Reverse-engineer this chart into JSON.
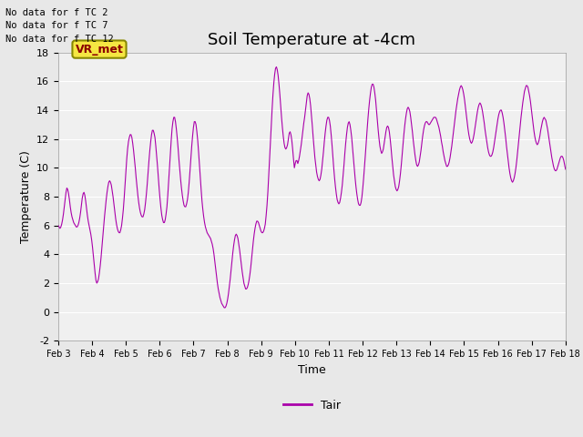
{
  "title": "Soil Temperature at -4cm",
  "xlabel": "Time",
  "ylabel": "Temperature (C)",
  "ylim": [
    -2,
    18
  ],
  "yticks": [
    -2,
    0,
    2,
    4,
    6,
    8,
    10,
    12,
    14,
    16,
    18
  ],
  "xtick_labels": [
    "Feb 3",
    "Feb 4",
    "Feb 5",
    "Feb 6",
    "Feb 7",
    "Feb 8",
    "Feb 9",
    "Feb 10",
    "Feb 11",
    "Feb 12",
    "Feb 13",
    "Feb 14",
    "Feb 15",
    "Feb 16",
    "Feb 17",
    "Feb 18"
  ],
  "line_color": "#aa00aa",
  "line_color_light": "#cc88cc",
  "background_color": "#e8e8e8",
  "plot_bg_color": "#f0f0f0",
  "no_data_texts": [
    "No data for f TC 2",
    "No data for f TC 7",
    "No data for f TC 12"
  ],
  "legend_label": "Tair",
  "vr_met_label": "VR_met",
  "title_fontsize": 13,
  "axis_fontsize": 9,
  "tick_fontsize": 8,
  "y_values": [
    6.0,
    5.9,
    5.8,
    5.9,
    6.1,
    6.4,
    6.8,
    7.3,
    7.8,
    8.3,
    8.6,
    8.5,
    8.2,
    7.8,
    7.3,
    6.9,
    6.6,
    6.4,
    6.2,
    6.1,
    6.0,
    5.9,
    5.9,
    6.0,
    6.2,
    6.5,
    6.9,
    7.4,
    7.9,
    8.2,
    8.3,
    8.1,
    7.7,
    7.2,
    6.7,
    6.3,
    6.0,
    5.7,
    5.4,
    5.0,
    4.5,
    3.9,
    3.3,
    2.7,
    2.2,
    2.0,
    2.1,
    2.3,
    2.7,
    3.2,
    3.8,
    4.5,
    5.2,
    5.9,
    6.6,
    7.2,
    7.8,
    8.3,
    8.7,
    9.0,
    9.1,
    9.0,
    8.8,
    8.4,
    8.0,
    7.5,
    7.0,
    6.5,
    6.1,
    5.8,
    5.6,
    5.5,
    5.5,
    5.7,
    6.0,
    6.5,
    7.1,
    7.9,
    8.8,
    9.7,
    10.6,
    11.3,
    11.8,
    12.1,
    12.3,
    12.3,
    12.1,
    11.7,
    11.2,
    10.6,
    10.0,
    9.3,
    8.7,
    8.1,
    7.6,
    7.2,
    6.9,
    6.7,
    6.6,
    6.6,
    6.8,
    7.1,
    7.6,
    8.2,
    8.9,
    9.7,
    10.5,
    11.2,
    11.8,
    12.3,
    12.6,
    12.6,
    12.4,
    12.1,
    11.5,
    10.8,
    10.1,
    9.3,
    8.5,
    7.8,
    7.2,
    6.7,
    6.4,
    6.2,
    6.2,
    6.4,
    6.8,
    7.3,
    8.1,
    9.0,
    10.0,
    11.0,
    11.9,
    12.7,
    13.2,
    13.5,
    13.5,
    13.2,
    12.7,
    12.1,
    11.4,
    10.6,
    9.9,
    9.2,
    8.6,
    8.1,
    7.7,
    7.4,
    7.3,
    7.3,
    7.5,
    7.8,
    8.3,
    9.0,
    9.8,
    10.7,
    11.5,
    12.2,
    12.8,
    13.2,
    13.2,
    13.0,
    12.5,
    11.9,
    11.1,
    10.2,
    9.3,
    8.5,
    7.7,
    7.1,
    6.6,
    6.2,
    5.9,
    5.7,
    5.5,
    5.4,
    5.3,
    5.2,
    5.1,
    4.9,
    4.7,
    4.4,
    4.0,
    3.5,
    3.0,
    2.5,
    2.0,
    1.6,
    1.3,
    1.0,
    0.8,
    0.6,
    0.5,
    0.4,
    0.3,
    0.3,
    0.4,
    0.6,
    0.9,
    1.3,
    1.8,
    2.3,
    2.9,
    3.5,
    4.1,
    4.6,
    5.0,
    5.3,
    5.4,
    5.3,
    5.1,
    4.7,
    4.3,
    3.8,
    3.3,
    2.8,
    2.4,
    2.0,
    1.8,
    1.6,
    1.6,
    1.7,
    1.9,
    2.2,
    2.6,
    3.1,
    3.7,
    4.3,
    4.9,
    5.4,
    5.8,
    6.1,
    6.3,
    6.3,
    6.2,
    6.0,
    5.8,
    5.6,
    5.5,
    5.5,
    5.6,
    5.8,
    6.1,
    6.7,
    7.4,
    8.3,
    9.4,
    10.6,
    11.8,
    13.0,
    14.1,
    15.1,
    15.9,
    16.5,
    16.9,
    17.0,
    16.8,
    16.4,
    15.8,
    15.1,
    14.3,
    13.5,
    12.8,
    12.2,
    11.7,
    11.4,
    11.3,
    11.4,
    11.6,
    12.0,
    12.4,
    12.5,
    12.3,
    11.9,
    11.3,
    10.6,
    10.0,
    10.3,
    10.5,
    10.5,
    10.3,
    10.5,
    10.8,
    11.2,
    11.6,
    12.1,
    12.6,
    13.1,
    13.5,
    14.0,
    14.5,
    15.0,
    15.2,
    15.1,
    14.8,
    14.3,
    13.6,
    12.9,
    12.1,
    11.4,
    10.7,
    10.2,
    9.7,
    9.4,
    9.2,
    9.1,
    9.2,
    9.5,
    9.9,
    10.5,
    11.1,
    11.8,
    12.4,
    12.9,
    13.3,
    13.5,
    13.5,
    13.3,
    12.9,
    12.3,
    11.6,
    10.8,
    10.0,
    9.3,
    8.7,
    8.2,
    7.8,
    7.6,
    7.5,
    7.6,
    7.9,
    8.3,
    8.8,
    9.5,
    10.2,
    11.0,
    11.7,
    12.3,
    12.8,
    13.1,
    13.2,
    13.0,
    12.6,
    12.1,
    11.4,
    10.7,
    10.0,
    9.3,
    8.7,
    8.2,
    7.8,
    7.5,
    7.4,
    7.4,
    7.6,
    8.0,
    8.6,
    9.3,
    10.1,
    10.9,
    11.8,
    12.6,
    13.4,
    14.1,
    14.7,
    15.2,
    15.6,
    15.8,
    15.8,
    15.6,
    15.2,
    14.7,
    14.0,
    13.3,
    12.6,
    12.0,
    11.5,
    11.2,
    11.0,
    11.1,
    11.3,
    11.7,
    12.1,
    12.5,
    12.8,
    12.9,
    12.8,
    12.5,
    12.0,
    11.4,
    10.7,
    10.1,
    9.5,
    9.1,
    8.7,
    8.5,
    8.4,
    8.5,
    8.7,
    9.1,
    9.6,
    10.2,
    10.9,
    11.6,
    12.3,
    12.9,
    13.4,
    13.8,
    14.1,
    14.2,
    14.1,
    13.9,
    13.5,
    13.0,
    12.5,
    11.9,
    11.4,
    10.9,
    10.5,
    10.2,
    10.1,
    10.2,
    10.4,
    10.8,
    11.2,
    11.7,
    12.2,
    12.6,
    12.9,
    13.1,
    13.2,
    13.2,
    13.1,
    13.0,
    13.0,
    13.1,
    13.2,
    13.3,
    13.4,
    13.5,
    13.5,
    13.5,
    13.4,
    13.2,
    13.0,
    12.8,
    12.5,
    12.2,
    11.8,
    11.5,
    11.1,
    10.8,
    10.5,
    10.3,
    10.1,
    10.1,
    10.2,
    10.4,
    10.7,
    11.1,
    11.5,
    12.0,
    12.5,
    13.0,
    13.5,
    14.0,
    14.4,
    14.8,
    15.1,
    15.4,
    15.6,
    15.7,
    15.6,
    15.4,
    15.1,
    14.7,
    14.2,
    13.7,
    13.2,
    12.7,
    12.3,
    12.0,
    11.8,
    11.7,
    11.8,
    12.0,
    12.3,
    12.7,
    13.1,
    13.5,
    13.9,
    14.2,
    14.4,
    14.5,
    14.4,
    14.2,
    13.9,
    13.5,
    13.1,
    12.6,
    12.2,
    11.8,
    11.4,
    11.1,
    10.9,
    10.8,
    10.8,
    10.9,
    11.1,
    11.4,
    11.8,
    12.2,
    12.6,
    13.0,
    13.4,
    13.7,
    13.9,
    14.0,
    14.0,
    13.8,
    13.5,
    13.1,
    12.6,
    12.1,
    11.5,
    11.0,
    10.5,
    10.0,
    9.6,
    9.3,
    9.1,
    9.0,
    9.1,
    9.3,
    9.6,
    10.0,
    10.5,
    11.1,
    11.7,
    12.3,
    12.9,
    13.5,
    14.0,
    14.5,
    14.9,
    15.3,
    15.5,
    15.7,
    15.7,
    15.6,
    15.3,
    15.0,
    14.6,
    14.1,
    13.6,
    13.1,
    12.6,
    12.2,
    11.9,
    11.7,
    11.6,
    11.7,
    11.9,
    12.2,
    12.6,
    12.9,
    13.2,
    13.4,
    13.5,
    13.4,
    13.3,
    13.0,
    12.7,
    12.3,
    11.9,
    11.5,
    11.1,
    10.7,
    10.4,
    10.1,
    9.9,
    9.8,
    9.8,
    9.9,
    10.1,
    10.3,
    10.5,
    10.7,
    10.8,
    10.8,
    10.7,
    10.5,
    10.2,
    9.9
  ]
}
